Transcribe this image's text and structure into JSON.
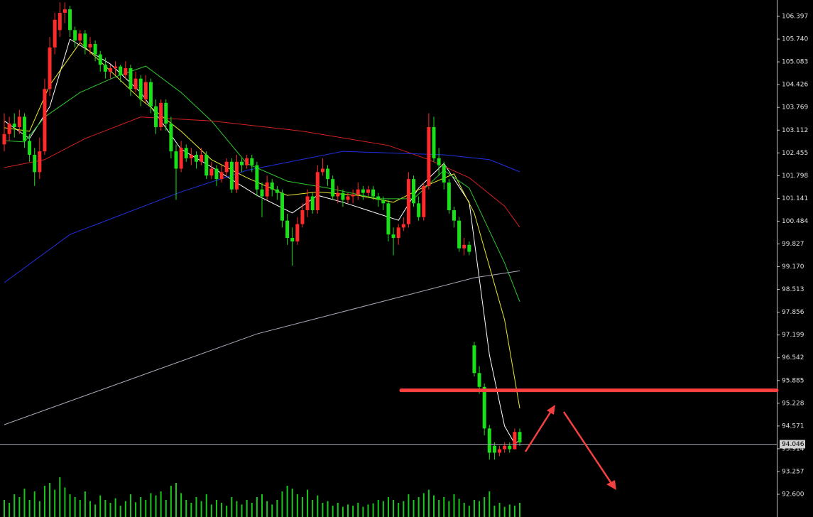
{
  "chart_data": {
    "type": "candlestick",
    "up_color": "#ff2a2a",
    "down_color": "#19e019",
    "ylim": [
      91.944,
      106.869
    ],
    "yticks": [
      106.397,
      {
        "value": 105.74,
        "label": "105.740"
      },
      105.083,
      104.426,
      103.769,
      103.112,
      102.455,
      101.798,
      101.141,
      100.484,
      99.827,
      {
        "value": 99.17,
        "label": "99.170"
      },
      98.513,
      97.856,
      97.199,
      96.542,
      95.885,
      95.228,
      94.571,
      93.914,
      93.257,
      {
        "value": 92.6,
        "label": "92.600"
      }
    ],
    "candles": [
      [
        102.7,
        103.6,
        102.5,
        103.0
      ],
      [
        103.0,
        103.5,
        102.8,
        103.3
      ],
      [
        103.3,
        103.6,
        102.9,
        103.2
      ],
      [
        103.2,
        103.7,
        103.0,
        103.5
      ],
      [
        103.5,
        103.6,
        102.6,
        102.8
      ],
      [
        102.8,
        103.0,
        102.2,
        102.4
      ],
      [
        102.4,
        102.6,
        101.5,
        101.9
      ],
      [
        101.9,
        102.9,
        101.7,
        102.5
      ],
      [
        102.5,
        104.6,
        102.4,
        104.3
      ],
      [
        104.3,
        105.8,
        104.1,
        105.5
      ],
      [
        105.5,
        106.5,
        105.3,
        106.3
      ],
      [
        106.0,
        106.8,
        105.8,
        106.5
      ],
      [
        106.5,
        106.8,
        106.2,
        106.6
      ],
      [
        106.6,
        106.7,
        105.8,
        106.0
      ],
      [
        106.0,
        106.1,
        105.5,
        105.7
      ],
      [
        105.7,
        106.0,
        105.6,
        105.9
      ],
      [
        105.9,
        106.0,
        105.3,
        105.5
      ],
      [
        105.5,
        105.8,
        105.3,
        105.6
      ],
      [
        105.6,
        105.7,
        105.1,
        105.3
      ],
      [
        105.3,
        105.4,
        104.8,
        105.0
      ],
      [
        105.0,
        105.2,
        104.6,
        104.8
      ],
      [
        104.8,
        105.0,
        104.6,
        104.9
      ],
      [
        104.9,
        105.1,
        104.7,
        104.95
      ],
      [
        104.95,
        105.0,
        104.5,
        104.7
      ],
      [
        104.7,
        105.1,
        104.6,
        104.9
      ],
      [
        104.9,
        105.0,
        104.1,
        104.3
      ],
      [
        104.3,
        104.8,
        104.2,
        104.6
      ],
      [
        104.6,
        104.7,
        103.8,
        104.0
      ],
      [
        104.0,
        104.7,
        103.9,
        104.5
      ],
      [
        104.5,
        104.6,
        103.6,
        103.8
      ],
      [
        103.8,
        104.0,
        103.0,
        103.2
      ],
      [
        103.2,
        104.0,
        103.1,
        103.9
      ],
      [
        103.9,
        104.0,
        103.1,
        103.3
      ],
      [
        103.3,
        103.5,
        102.3,
        102.5
      ],
      [
        102.5,
        102.7,
        101.1,
        102.0
      ],
      [
        102.0,
        102.8,
        101.9,
        102.6
      ],
      [
        102.6,
        102.7,
        102.2,
        102.3
      ],
      [
        102.3,
        102.6,
        102.1,
        102.4
      ],
      [
        102.4,
        102.5,
        102.0,
        102.2
      ],
      [
        102.2,
        102.6,
        102.1,
        102.4
      ],
      [
        102.4,
        102.5,
        101.7,
        101.8
      ],
      [
        101.8,
        102.2,
        101.7,
        102.0
      ],
      [
        102.0,
        102.1,
        101.5,
        101.7
      ],
      [
        101.7,
        102.1,
        101.6,
        101.9
      ],
      [
        101.9,
        102.3,
        101.8,
        102.2
      ],
      [
        102.2,
        102.3,
        101.3,
        101.4
      ],
      [
        101.4,
        102.4,
        101.3,
        102.2
      ],
      [
        102.2,
        102.3,
        101.9,
        102.1
      ],
      [
        102.1,
        102.4,
        102.0,
        102.3
      ],
      [
        102.3,
        102.4,
        101.9,
        102.1
      ],
      [
        102.1,
        102.2,
        101.2,
        101.4
      ],
      [
        101.4,
        101.6,
        100.6,
        101.2
      ],
      [
        101.2,
        101.8,
        101.1,
        101.6
      ],
      [
        101.6,
        101.7,
        101.2,
        101.4
      ],
      [
        101.4,
        101.5,
        101.1,
        101.3
      ],
      [
        101.3,
        101.4,
        100.3,
        100.5
      ],
      [
        100.5,
        100.7,
        99.8,
        100.0
      ],
      [
        100.0,
        100.3,
        99.2,
        99.9
      ],
      [
        99.9,
        100.6,
        99.8,
        100.4
      ],
      [
        100.4,
        101.0,
        100.3,
        100.8
      ],
      [
        100.8,
        101.4,
        100.6,
        101.2
      ],
      [
        101.2,
        101.3,
        100.7,
        100.8
      ],
      [
        100.8,
        102.1,
        100.7,
        101.9
      ],
      [
        101.9,
        102.3,
        101.8,
        102.0
      ],
      [
        102.0,
        102.1,
        101.5,
        101.7
      ],
      [
        101.7,
        101.8,
        101.1,
        101.2
      ],
      [
        101.2,
        101.5,
        101.0,
        101.3
      ],
      [
        101.3,
        101.4,
        100.9,
        101.1
      ],
      [
        101.1,
        101.3,
        101.0,
        101.2
      ],
      [
        101.2,
        101.4,
        101.0,
        101.25
      ],
      [
        101.25,
        101.6,
        101.1,
        101.4
      ],
      [
        101.4,
        101.5,
        101.1,
        101.3
      ],
      [
        101.3,
        101.5,
        101.2,
        101.4
      ],
      [
        101.4,
        101.5,
        101.1,
        101.2
      ],
      [
        101.2,
        101.3,
        100.9,
        101.1
      ],
      [
        101.1,
        101.2,
        100.8,
        101.0
      ],
      [
        101.0,
        101.1,
        99.9,
        100.1
      ],
      [
        100.1,
        100.3,
        99.5,
        100.0
      ],
      [
        100.0,
        100.4,
        99.8,
        100.3
      ],
      [
        100.3,
        100.6,
        100.2,
        100.4
      ],
      [
        100.4,
        101.9,
        100.3,
        101.7
      ],
      [
        101.7,
        101.8,
        100.9,
        101.0
      ],
      [
        101.0,
        101.2,
        100.5,
        100.6
      ],
      [
        100.6,
        101.6,
        100.5,
        101.5
      ],
      [
        101.5,
        103.6,
        101.4,
        103.2
      ],
      [
        103.2,
        103.5,
        102.2,
        102.3
      ],
      [
        102.3,
        102.6,
        101.8,
        102.1
      ],
      [
        102.1,
        102.2,
        101.4,
        101.6
      ],
      [
        101.6,
        101.7,
        100.7,
        100.8
      ],
      [
        100.8,
        100.9,
        100.3,
        100.5
      ],
      [
        100.5,
        100.6,
        99.6,
        99.7
      ],
      [
        99.7,
        100.0,
        99.5,
        99.8
      ],
      [
        99.8,
        99.9,
        99.5,
        99.6
      ],
      [
        96.9,
        97.0,
        96.0,
        96.1
      ],
      [
        96.1,
        96.3,
        95.5,
        95.7
      ],
      [
        95.7,
        95.8,
        94.3,
        94.5
      ],
      [
        94.5,
        94.6,
        93.6,
        93.8
      ],
      [
        94.0,
        94.1,
        93.6,
        93.8
      ],
      [
        93.8,
        94.0,
        93.7,
        93.9
      ],
      [
        93.9,
        94.1,
        93.8,
        94.0
      ],
      [
        94.0,
        94.1,
        93.8,
        93.9
      ],
      [
        93.9,
        94.5,
        93.9,
        94.4
      ],
      [
        94.4,
        94.5,
        94.0,
        94.1
      ]
    ],
    "volume": [
      30,
      25,
      40,
      35,
      50,
      30,
      45,
      28,
      55,
      60,
      48,
      70,
      52,
      40,
      35,
      30,
      45,
      28,
      22,
      38,
      30,
      25,
      33,
      20,
      28,
      40,
      26,
      35,
      30,
      42,
      38,
      45,
      30,
      55,
      60,
      42,
      30,
      25,
      35,
      28,
      40,
      22,
      30,
      25,
      20,
      35,
      28,
      22,
      30,
      25,
      35,
      40,
      28,
      22,
      30,
      45,
      55,
      50,
      40,
      35,
      48,
      30,
      38,
      25,
      28,
      20,
      25,
      18,
      22,
      20,
      25,
      18,
      22,
      24,
      30,
      28,
      35,
      30,
      25,
      28,
      40,
      30,
      35,
      42,
      48,
      38,
      30,
      35,
      28,
      40,
      32,
      25,
      20,
      30,
      28,
      35,
      45,
      20,
      25,
      18,
      22,
      20,
      25
    ],
    "ma": [
      {
        "color": "#ffffff",
        "x": [
          0,
          5,
          9,
          13,
          21,
          27,
          35,
          41,
          50,
          57,
          62,
          67,
          78,
          82,
          87,
          92,
          96,
          99,
          101,
          102
        ],
        "values": [
          103.38,
          102.87,
          103.79,
          105.74,
          105.02,
          104.2,
          102.56,
          102.05,
          101.23,
          100.72,
          101.23,
          101.03,
          100.51,
          101.44,
          102.15,
          101.03,
          96.62,
          94.57,
          94.06,
          94.16
        ]
      },
      {
        "color": "#e8e830",
        "x": [
          0,
          5,
          9,
          15,
          21,
          27,
          35,
          41,
          48,
          56,
          62,
          70,
          77,
          84,
          89,
          93,
          99,
          102
        ],
        "values": [
          103.18,
          103.08,
          104.41,
          105.64,
          104.82,
          104.0,
          103.08,
          102.26,
          101.74,
          101.23,
          101.33,
          101.23,
          101.03,
          101.54,
          101.85,
          100.72,
          97.64,
          95.08
        ]
      },
      {
        "color": "#2ec82e",
        "x": [
          0,
          4,
          8,
          15,
          22,
          28,
          35,
          41,
          48,
          56,
          64,
          74,
          81,
          87,
          92,
          99,
          102
        ],
        "values": [
          102.81,
          102.77,
          103.49,
          104.2,
          104.65,
          104.96,
          104.2,
          103.38,
          102.15,
          101.64,
          101.44,
          101.13,
          101.13,
          101.95,
          101.44,
          99.28,
          98.16
        ]
      },
      {
        "color": "#d52020",
        "x": [
          0,
          8,
          16,
          27,
          41,
          59,
          76,
          84,
          92,
          99,
          102
        ],
        "values": [
          102.03,
          102.26,
          102.87,
          103.49,
          103.38,
          103.08,
          102.67,
          102.26,
          101.74,
          100.92,
          100.31
        ]
      },
      {
        "color": "#2030e0",
        "x": [
          0,
          13,
          35,
          48,
          67,
          87,
          96,
          102
        ],
        "values": [
          98.71,
          100.1,
          101.33,
          101.95,
          102.5,
          102.4,
          102.26,
          101.91
        ]
      },
      {
        "color": "#a8a8b8",
        "x": [
          0,
          50,
          93,
          102
        ],
        "values": [
          94.61,
          97.23,
          98.85,
          99.05
        ]
      }
    ],
    "resistance": 95.6,
    "last_price": 94.046
  }
}
